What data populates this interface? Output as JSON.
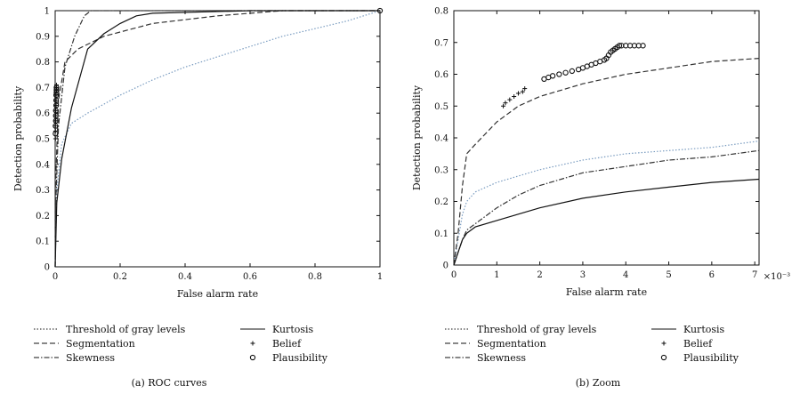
{
  "chart_data": [
    {
      "type": "line",
      "caption": "(a) ROC curves",
      "xlabel": "False alarm rate",
      "ylabel": "Detection probability",
      "xlim": [
        0,
        1
      ],
      "ylim": [
        0,
        1
      ],
      "xticks": [
        "0",
        "0.2",
        "0.4",
        "0.6",
        "0.8",
        "1"
      ],
      "yticks": [
        "0",
        "0.1",
        "0.2",
        "0.3",
        "0.4",
        "0.5",
        "0.6",
        "0.7",
        "0.8",
        "0.9",
        "1"
      ],
      "legend": [
        "Threshold of gray levels",
        "Segmentation",
        "Skewness",
        "Kurtosis",
        "Belief",
        "Plausibility"
      ],
      "series": [
        {
          "name": "Threshold of gray levels",
          "style": "dotted",
          "color": "#7a9cc0",
          "x": [
            0,
            0.005,
            0.02,
            0.05,
            0.1,
            0.2,
            0.3,
            0.4,
            0.5,
            0.6,
            0.7,
            0.8,
            0.9,
            1.0
          ],
          "y": [
            0,
            0.3,
            0.48,
            0.56,
            0.6,
            0.67,
            0.73,
            0.78,
            0.82,
            0.86,
            0.9,
            0.93,
            0.96,
            1.0
          ]
        },
        {
          "name": "Segmentation",
          "style": "dashed",
          "color": "#333333",
          "x": [
            0,
            0.002,
            0.01,
            0.03,
            0.07,
            0.15,
            0.3,
            0.5,
            0.7,
            0.9,
            1.0
          ],
          "y": [
            0,
            0.35,
            0.65,
            0.8,
            0.85,
            0.9,
            0.95,
            0.98,
            1.0,
            1.0,
            1.0
          ]
        },
        {
          "name": "Skewness",
          "style": "dashdot",
          "color": "#333333",
          "x": [
            0,
            0.002,
            0.01,
            0.03,
            0.06,
            0.09,
            0.11,
            0.2,
            0.5,
            1.0
          ],
          "y": [
            0,
            0.25,
            0.55,
            0.78,
            0.9,
            0.98,
            1.0,
            1.0,
            1.0,
            1.0
          ]
        },
        {
          "name": "Kurtosis",
          "style": "solid",
          "color": "#111111",
          "x": [
            0,
            0.005,
            0.02,
            0.05,
            0.1,
            0.15,
            0.2,
            0.25,
            0.3,
            0.6,
            1.0
          ],
          "y": [
            0,
            0.25,
            0.42,
            0.62,
            0.85,
            0.91,
            0.95,
            0.98,
            0.99,
            1.0,
            1.0
          ]
        },
        {
          "name": "Belief",
          "style": "marker-plus",
          "color": "#111111",
          "x": [
            0.001,
            0.001,
            0.001,
            0.002,
            0.002,
            0.002,
            0.003,
            0.003,
            0.003,
            0.004,
            0.004,
            0.004
          ],
          "y": [
            0.5,
            0.53,
            0.55,
            0.57,
            0.59,
            0.61,
            0.63,
            0.65,
            0.67,
            0.69,
            0.7,
            0.71
          ]
        },
        {
          "name": "Plausibility",
          "style": "marker-circle",
          "color": "#111111",
          "x": [
            0.001,
            0.001,
            0.002,
            0.002,
            0.002,
            0.003,
            0.003,
            0.003,
            0.004,
            0.004,
            0.004,
            1.0
          ],
          "y": [
            0.52,
            0.55,
            0.57,
            0.59,
            0.61,
            0.63,
            0.65,
            0.67,
            0.68,
            0.69,
            0.7,
            1.0
          ]
        }
      ]
    },
    {
      "type": "line",
      "caption": "(b) Zoom",
      "xlabel": "False alarm rate",
      "ylabel": "Detection probability",
      "xscale_label": "×10⁻³",
      "xlim": [
        0,
        7.1
      ],
      "ylim": [
        0,
        0.8
      ],
      "xticks": [
        "0",
        "1",
        "2",
        "3",
        "4",
        "5",
        "6",
        "7"
      ],
      "yticks": [
        "0",
        "0.1",
        "0.2",
        "0.3",
        "0.4",
        "0.5",
        "0.6",
        "0.7",
        "0.8"
      ],
      "legend": [
        "Threshold of gray levels",
        "Segmentation",
        "Skewness",
        "Kurtosis",
        "Belief",
        "Plausibility"
      ],
      "series": [
        {
          "name": "Threshold of gray levels",
          "style": "dotted",
          "color": "#7a9cc0",
          "x": [
            0,
            0.1,
            0.2,
            0.3,
            0.5,
            1,
            2,
            3,
            4,
            5,
            6,
            7.1
          ],
          "y": [
            0,
            0.08,
            0.16,
            0.2,
            0.23,
            0.26,
            0.3,
            0.33,
            0.35,
            0.36,
            0.37,
            0.39
          ]
        },
        {
          "name": "Segmentation",
          "style": "dashed",
          "color": "#333333",
          "x": [
            0,
            0.1,
            0.2,
            0.3,
            0.5,
            1,
            1.5,
            2,
            3,
            4,
            5,
            6,
            7.1
          ],
          "y": [
            0,
            0.1,
            0.25,
            0.35,
            0.38,
            0.45,
            0.5,
            0.53,
            0.57,
            0.6,
            0.62,
            0.64,
            0.65
          ]
        },
        {
          "name": "Skewness",
          "style": "dashdot",
          "color": "#333333",
          "x": [
            0,
            0.1,
            0.2,
            0.3,
            0.5,
            1,
            1.5,
            2,
            3,
            4,
            5,
            6,
            7.1
          ],
          "y": [
            0,
            0.04,
            0.08,
            0.11,
            0.13,
            0.18,
            0.22,
            0.25,
            0.29,
            0.31,
            0.33,
            0.34,
            0.36
          ]
        },
        {
          "name": "Kurtosis",
          "style": "solid",
          "color": "#111111",
          "x": [
            0,
            0.1,
            0.2,
            0.3,
            0.5,
            1,
            2,
            3,
            4,
            5,
            6,
            7.1
          ],
          "y": [
            0,
            0.04,
            0.08,
            0.1,
            0.12,
            0.14,
            0.18,
            0.21,
            0.23,
            0.245,
            0.26,
            0.27
          ]
        },
        {
          "name": "Belief",
          "style": "marker-plus",
          "color": "#111111",
          "x": [
            1.15,
            1.2,
            1.3,
            1.4,
            1.5,
            1.6,
            1.65
          ],
          "y": [
            0.5,
            0.51,
            0.52,
            0.53,
            0.54,
            0.545,
            0.555
          ]
        },
        {
          "name": "Plausibility",
          "style": "marker-circle",
          "color": "#111111",
          "x": [
            2.1,
            2.2,
            2.3,
            2.45,
            2.6,
            2.75,
            2.9,
            3.0,
            3.1,
            3.2,
            3.3,
            3.4,
            3.5,
            3.55,
            3.6,
            3.65,
            3.7,
            3.75,
            3.8,
            3.85,
            3.9,
            4.0,
            4.1,
            4.2,
            4.3,
            4.4
          ],
          "y": [
            0.585,
            0.59,
            0.595,
            0.6,
            0.605,
            0.61,
            0.615,
            0.62,
            0.625,
            0.63,
            0.635,
            0.64,
            0.645,
            0.65,
            0.66,
            0.67,
            0.675,
            0.68,
            0.685,
            0.69,
            0.69,
            0.69,
            0.69,
            0.69,
            0.69,
            0.69
          ]
        }
      ]
    }
  ]
}
